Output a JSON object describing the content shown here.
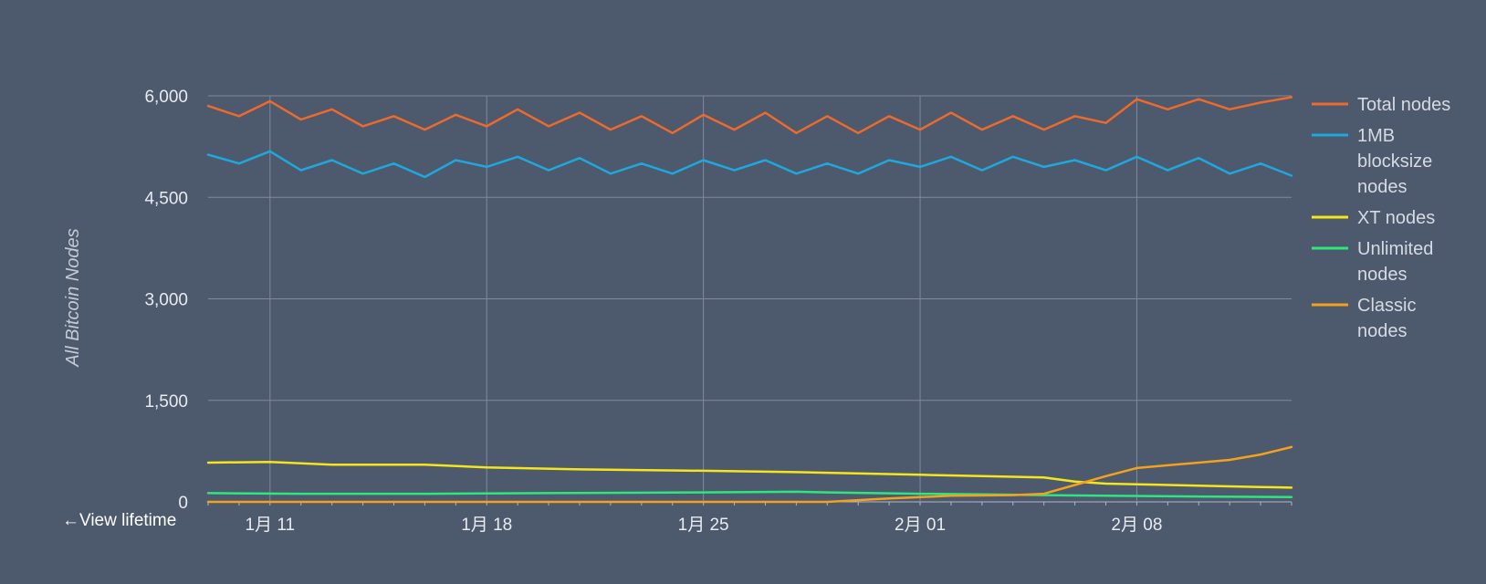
{
  "view_lifetime_label": "View lifetime",
  "view_lifetime_arrow": "←",
  "chart_data": {
    "type": "line",
    "title": "",
    "ylabel": "All Bitcoin Nodes",
    "xlabel": "",
    "x_range": [
      "2019-01-09",
      "2019-02-13"
    ],
    "x_ticks": [
      {
        "date": "2019-01-11",
        "label": "1月 11"
      },
      {
        "date": "2019-01-18",
        "label": "1月 18"
      },
      {
        "date": "2019-01-25",
        "label": "1月 25"
      },
      {
        "date": "2019-02-01",
        "label": "2月 01"
      },
      {
        "date": "2019-02-08",
        "label": "2月 08"
      }
    ],
    "ylim": [
      0,
      6000
    ],
    "y_ticks": [
      {
        "value": 0,
        "label": "0"
      },
      {
        "value": 1500,
        "label": "1,500"
      },
      {
        "value": 3000,
        "label": "3,000"
      },
      {
        "value": 4500,
        "label": "4,500"
      },
      {
        "value": 6000,
        "label": "6,000"
      }
    ],
    "grid": true,
    "legend_position": "right",
    "series": [
      {
        "name": "Total nodes",
        "color": "#ec6a2c",
        "points": [
          [
            "2019-01-09",
            5850
          ],
          [
            "2019-01-10",
            5700
          ],
          [
            "2019-01-11",
            5920
          ],
          [
            "2019-01-12",
            5650
          ],
          [
            "2019-01-13",
            5800
          ],
          [
            "2019-01-14",
            5550
          ],
          [
            "2019-01-15",
            5700
          ],
          [
            "2019-01-16",
            5500
          ],
          [
            "2019-01-17",
            5720
          ],
          [
            "2019-01-18",
            5550
          ],
          [
            "2019-01-19",
            5800
          ],
          [
            "2019-01-20",
            5550
          ],
          [
            "2019-01-21",
            5750
          ],
          [
            "2019-01-22",
            5500
          ],
          [
            "2019-01-23",
            5700
          ],
          [
            "2019-01-24",
            5450
          ],
          [
            "2019-01-25",
            5720
          ],
          [
            "2019-01-26",
            5500
          ],
          [
            "2019-01-27",
            5750
          ],
          [
            "2019-01-28",
            5450
          ],
          [
            "2019-01-29",
            5700
          ],
          [
            "2019-01-30",
            5450
          ],
          [
            "2019-01-31",
            5700
          ],
          [
            "2019-02-01",
            5500
          ],
          [
            "2019-02-02",
            5750
          ],
          [
            "2019-02-03",
            5500
          ],
          [
            "2019-02-04",
            5700
          ],
          [
            "2019-02-05",
            5500
          ],
          [
            "2019-02-06",
            5700
          ],
          [
            "2019-02-07",
            5600
          ],
          [
            "2019-02-08",
            5950
          ],
          [
            "2019-02-09",
            5800
          ],
          [
            "2019-02-10",
            5950
          ],
          [
            "2019-02-11",
            5800
          ],
          [
            "2019-02-12",
            5900
          ],
          [
            "2019-02-13",
            5980
          ]
        ]
      },
      {
        "name": "1MB blocksize nodes",
        "color": "#1ea8dc",
        "points": [
          [
            "2019-01-09",
            5130
          ],
          [
            "2019-01-10",
            5000
          ],
          [
            "2019-01-11",
            5180
          ],
          [
            "2019-01-12",
            4900
          ],
          [
            "2019-01-13",
            5050
          ],
          [
            "2019-01-14",
            4850
          ],
          [
            "2019-01-15",
            5000
          ],
          [
            "2019-01-16",
            4800
          ],
          [
            "2019-01-17",
            5050
          ],
          [
            "2019-01-18",
            4950
          ],
          [
            "2019-01-19",
            5100
          ],
          [
            "2019-01-20",
            4900
          ],
          [
            "2019-01-21",
            5080
          ],
          [
            "2019-01-22",
            4850
          ],
          [
            "2019-01-23",
            5000
          ],
          [
            "2019-01-24",
            4850
          ],
          [
            "2019-01-25",
            5050
          ],
          [
            "2019-01-26",
            4900
          ],
          [
            "2019-01-27",
            5050
          ],
          [
            "2019-01-28",
            4850
          ],
          [
            "2019-01-29",
            5000
          ],
          [
            "2019-01-30",
            4850
          ],
          [
            "2019-01-31",
            5050
          ],
          [
            "2019-02-01",
            4950
          ],
          [
            "2019-02-02",
            5100
          ],
          [
            "2019-02-03",
            4900
          ],
          [
            "2019-02-04",
            5100
          ],
          [
            "2019-02-05",
            4950
          ],
          [
            "2019-02-06",
            5050
          ],
          [
            "2019-02-07",
            4900
          ],
          [
            "2019-02-08",
            5100
          ],
          [
            "2019-02-09",
            4900
          ],
          [
            "2019-02-10",
            5080
          ],
          [
            "2019-02-11",
            4850
          ],
          [
            "2019-02-12",
            5000
          ],
          [
            "2019-02-13",
            4820
          ]
        ]
      },
      {
        "name": "XT nodes",
        "color": "#f5e51b",
        "points": [
          [
            "2019-01-09",
            580
          ],
          [
            "2019-01-11",
            590
          ],
          [
            "2019-01-13",
            550
          ],
          [
            "2019-01-16",
            550
          ],
          [
            "2019-01-18",
            510
          ],
          [
            "2019-01-21",
            480
          ],
          [
            "2019-01-25",
            460
          ],
          [
            "2019-01-28",
            440
          ],
          [
            "2019-02-01",
            400
          ],
          [
            "2019-02-03",
            380
          ],
          [
            "2019-02-05",
            360
          ],
          [
            "2019-02-06",
            300
          ],
          [
            "2019-02-07",
            270
          ],
          [
            "2019-02-08",
            260
          ],
          [
            "2019-02-10",
            240
          ],
          [
            "2019-02-12",
            220
          ],
          [
            "2019-02-13",
            210
          ]
        ]
      },
      {
        "name": "Unlimited nodes",
        "color": "#2ee67f",
        "points": [
          [
            "2019-01-09",
            130
          ],
          [
            "2019-01-12",
            120
          ],
          [
            "2019-01-16",
            120
          ],
          [
            "2019-01-20",
            130
          ],
          [
            "2019-01-25",
            140
          ],
          [
            "2019-01-28",
            150
          ],
          [
            "2019-01-29",
            140
          ],
          [
            "2019-02-01",
            120
          ],
          [
            "2019-02-03",
            110
          ],
          [
            "2019-02-05",
            100
          ],
          [
            "2019-02-07",
            90
          ],
          [
            "2019-02-10",
            80
          ],
          [
            "2019-02-13",
            70
          ]
        ]
      },
      {
        "name": "Classic nodes",
        "color": "#f2a21c",
        "points": [
          [
            "2019-01-09",
            0
          ],
          [
            "2019-01-29",
            0
          ],
          [
            "2019-01-31",
            50
          ],
          [
            "2019-02-02",
            90
          ],
          [
            "2019-02-04",
            100
          ],
          [
            "2019-02-05",
            120
          ],
          [
            "2019-02-06",
            250
          ],
          [
            "2019-02-07",
            380
          ],
          [
            "2019-02-08",
            500
          ],
          [
            "2019-02-09",
            540
          ],
          [
            "2019-02-10",
            580
          ],
          [
            "2019-02-11",
            620
          ],
          [
            "2019-02-12",
            700
          ],
          [
            "2019-02-13",
            810
          ]
        ]
      }
    ]
  }
}
